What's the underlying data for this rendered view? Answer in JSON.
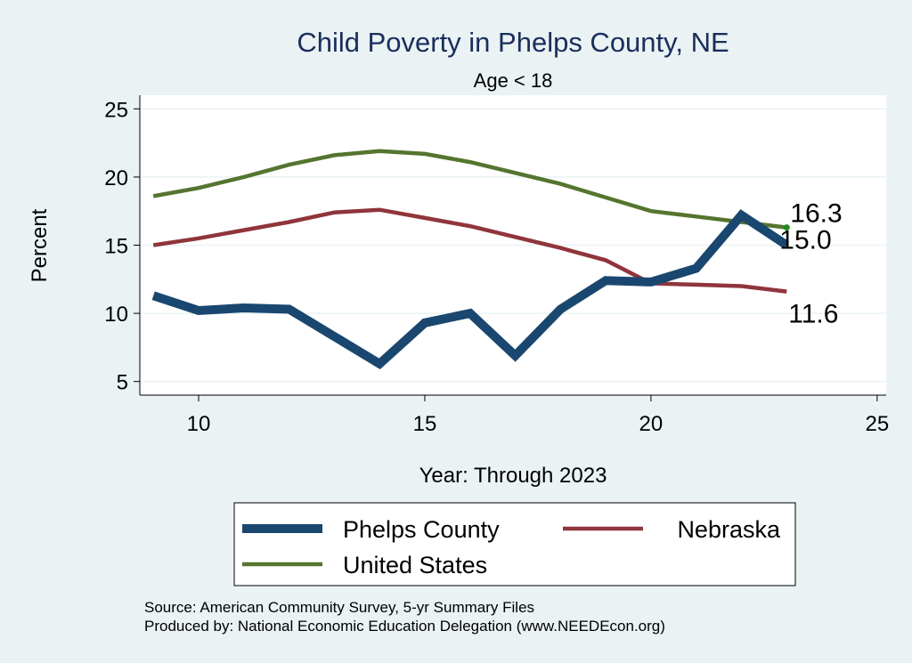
{
  "chart_data": {
    "type": "line",
    "title": "Child Poverty in Phelps County, NE",
    "subtitle": "Age < 18",
    "xlabel": "Year: Through 2023",
    "ylabel": "Percent",
    "xlim": [
      8.7,
      25.2
    ],
    "ylim": [
      4.0,
      26.0
    ],
    "xticks": [
      "10",
      "15",
      "20",
      "25"
    ],
    "yticks": [
      "5",
      "10",
      "15",
      "20",
      "25"
    ],
    "grid": true,
    "legend_position": "bottom",
    "x": [
      9,
      10,
      11,
      12,
      13,
      14,
      15,
      16,
      17,
      18,
      19,
      20,
      21,
      22,
      23
    ],
    "series": [
      {
        "name": "Phelps County",
        "color": "#1a476f",
        "values": [
          11.3,
          10.2,
          10.4,
          10.3,
          8.3,
          6.3,
          9.3,
          10.0,
          6.9,
          10.3,
          12.4,
          12.3,
          13.3,
          17.2,
          15.0
        ]
      },
      {
        "name": "Nebraska",
        "color": "#90353b",
        "values": [
          15.0,
          15.5,
          16.1,
          16.7,
          17.4,
          17.6,
          17.0,
          16.4,
          15.6,
          14.8,
          13.9,
          12.2,
          12.1,
          12.0,
          11.6
        ]
      },
      {
        "name": "United States",
        "color": "#55752f",
        "values": [
          18.6,
          19.2,
          20.0,
          20.9,
          21.6,
          21.9,
          21.7,
          21.1,
          20.3,
          19.5,
          18.5,
          17.5,
          17.1,
          16.7,
          16.3
        ]
      }
    ],
    "end_labels": [
      {
        "series": "United States",
        "text": "16.3"
      },
      {
        "series": "Phelps County",
        "text": "15.0"
      },
      {
        "series": "Nebraska",
        "text": "11.6"
      }
    ],
    "notes": [
      "Source: American Community Survey, 5-yr Summary Files",
      "Produced by: National Economic Education Delegation (www.NEEDEcon.org)"
    ]
  }
}
